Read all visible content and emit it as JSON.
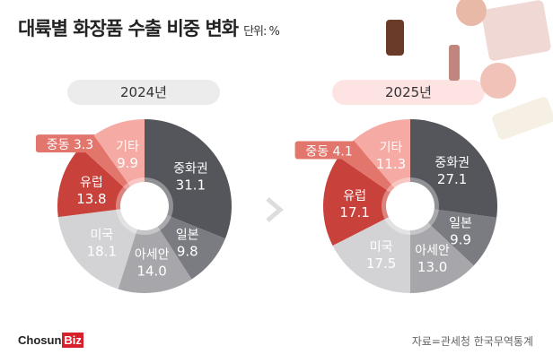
{
  "title": "대륙별 화장품 수출 비중 변화",
  "unit": "단위: %",
  "source": "자료=관세청 한국무역통계",
  "logo": "ChosunBiz",
  "logo_main": "Chosun",
  "logo_accent": "Biz",
  "chart_data": [
    {
      "type": "pie",
      "title": "2024년",
      "categories": [
        "중화권",
        "일본",
        "아세안",
        "미국",
        "유럽",
        "중동",
        "기타"
      ],
      "values": [
        31.1,
        9.8,
        14.0,
        18.1,
        13.8,
        3.3,
        9.9
      ],
      "colors": [
        "#55565c",
        "#7b7c81",
        "#a7a7ab",
        "#d3d3d5",
        "#c8413a",
        "#e2766d",
        "#f6aaa4"
      ]
    },
    {
      "type": "pie",
      "title": "2025년",
      "categories": [
        "중화권",
        "일본",
        "아세안",
        "미국",
        "유럽",
        "중동",
        "기타"
      ],
      "values": [
        27.1,
        9.9,
        13.0,
        17.5,
        17.1,
        4.1,
        11.3
      ],
      "colors": [
        "#55565c",
        "#7b7c81",
        "#a7a7ab",
        "#d3d3d5",
        "#c8413a",
        "#e2766d",
        "#f6aaa4"
      ]
    }
  ]
}
